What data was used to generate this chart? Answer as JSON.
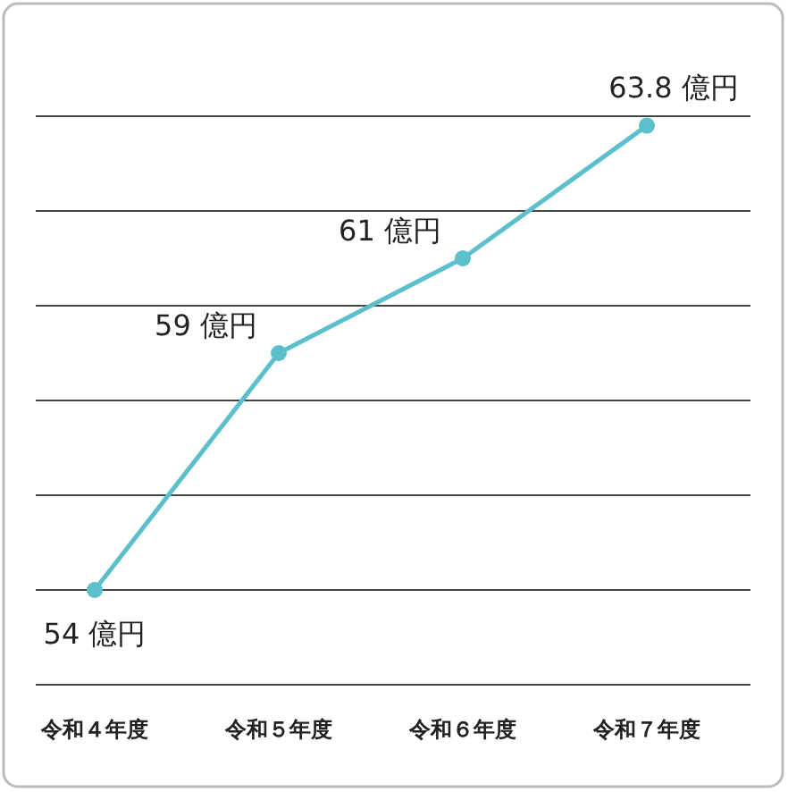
{
  "chart_data": {
    "type": "line",
    "categories": [
      "令和４年度",
      "令和５年度",
      "令和６年度",
      "令和７年度"
    ],
    "series": [
      {
        "color": "#5bbfcc",
        "values": [
          54,
          59,
          61,
          63.8
        ],
        "value_labels": [
          "54 億円",
          "59 億円",
          "61 億円",
          "63.8 億円"
        ]
      }
    ],
    "ylim": [
      52,
      64
    ],
    "yticks": [
      {
        "value": 54,
        "label": null
      },
      {
        "value": 56,
        "label": null
      },
      {
        "value": 58,
        "label": null
      },
      {
        "value": 60,
        "label": null
      },
      {
        "value": 62,
        "label": null
      },
      {
        "value": 64,
        "label": null
      }
    ],
    "grid": "y",
    "marker": "circle",
    "line_style": "solid",
    "tick_labels": "x"
  }
}
